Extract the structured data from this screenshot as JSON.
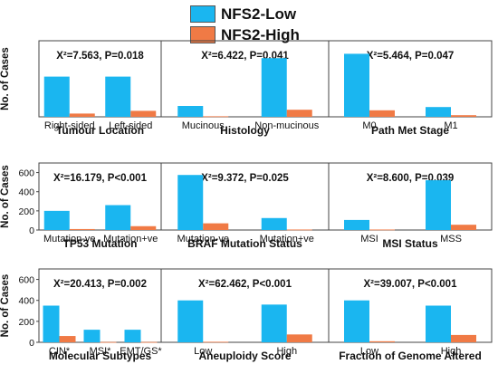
{
  "legend": {
    "items": [
      {
        "label": "NFS2-Low",
        "color": "#1ab6f0"
      },
      {
        "label": "NFS2-High",
        "color": "#f07a45"
      }
    ]
  },
  "colors": {
    "low": "#1ab6f0",
    "high": "#f07a45",
    "frame": "#444444"
  },
  "chart_data": [
    {
      "type": "bar",
      "title": "Tumour Location",
      "stat": "X²=7.563, P=0.018",
      "categories": [
        "Right-sided",
        "Left-sided"
      ],
      "ylabel": "No. of Cases",
      "ylim": [
        0,
        700
      ],
      "yticks": [],
      "series": [
        {
          "name": "NFS2-Low",
          "values": [
            370,
            370
          ]
        },
        {
          "name": "NFS2-High",
          "values": [
            30,
            55
          ]
        }
      ]
    },
    {
      "type": "bar",
      "title": "Histology",
      "stat": "X²=6.422, P=0.041",
      "categories": [
        "Mucinous",
        "Non-mucinous"
      ],
      "ylabel": "",
      "ylim": [
        0,
        700
      ],
      "yticks": [],
      "series": [
        {
          "name": "NFS2-Low",
          "values": [
            100,
            540
          ]
        },
        {
          "name": "NFS2-High",
          "values": [
            5,
            65
          ]
        }
      ]
    },
    {
      "type": "bar",
      "title": "Path Met Stage",
      "stat": "X²=5.464, P=0.047",
      "categories": [
        "M0",
        "M1"
      ],
      "ylabel": "",
      "ylim": [
        0,
        700
      ],
      "yticks": [],
      "series": [
        {
          "name": "NFS2-Low",
          "values": [
            580,
            90
          ]
        },
        {
          "name": "NFS2-High",
          "values": [
            60,
            15
          ]
        }
      ]
    },
    {
      "type": "bar",
      "title": "TP53 Mutation",
      "stat": "X²=16.179, P<0.001",
      "categories": [
        "Mutation-ve",
        "Mutation+ve"
      ],
      "ylabel": "No. of Cases",
      "ylim": [
        0,
        700
      ],
      "yticks": [
        "0",
        "200",
        "400",
        "600"
      ],
      "series": [
        {
          "name": "NFS2-Low",
          "values": [
            200,
            260
          ]
        },
        {
          "name": "NFS2-High",
          "values": [
            10,
            40
          ]
        }
      ]
    },
    {
      "type": "bar",
      "title": "BRAF Mutation Status",
      "stat": "X²=9.372, P=0.025",
      "categories": [
        "Mutation-ve",
        "Mutation+ve"
      ],
      "ylabel": "",
      "ylim": [
        0,
        700
      ],
      "yticks": [],
      "series": [
        {
          "name": "NFS2-Low",
          "values": [
            575,
            125
          ]
        },
        {
          "name": "NFS2-High",
          "values": [
            70,
            5
          ]
        }
      ]
    },
    {
      "type": "bar",
      "title": "MSI Status",
      "stat": "X²=8.600, P=0.039",
      "categories": [
        "MSI",
        "MSS"
      ],
      "ylabel": "",
      "ylim": [
        0,
        700
      ],
      "yticks": [],
      "series": [
        {
          "name": "NFS2-Low",
          "values": [
            105,
            520
          ]
        },
        {
          "name": "NFS2-High",
          "values": [
            5,
            55
          ]
        }
      ]
    },
    {
      "type": "bar",
      "title": "Molecular Subtypes",
      "stat": "X²=20.413, P=0.002",
      "categories": [
        "CIN*",
        "MSI*",
        "EMT/GS*"
      ],
      "ylabel": "No. of Cases",
      "ylim": [
        0,
        700
      ],
      "yticks": [
        "0",
        "200",
        "400",
        "600"
      ],
      "series": [
        {
          "name": "NFS2-Low",
          "values": [
            350,
            120,
            120
          ]
        },
        {
          "name": "NFS2-High",
          "values": [
            60,
            3,
            3
          ]
        }
      ]
    },
    {
      "type": "bar",
      "title": "Aneuploidy Score",
      "stat": "X²=62.462, P<0.001",
      "categories": [
        "Low",
        "High"
      ],
      "ylabel": "",
      "ylim": [
        0,
        700
      ],
      "yticks": [],
      "series": [
        {
          "name": "NFS2-Low",
          "values": [
            400,
            360
          ]
        },
        {
          "name": "NFS2-High",
          "values": [
            5,
            75
          ]
        }
      ]
    },
    {
      "type": "bar",
      "title": "Fraction of Genome Altered",
      "stat": "X²=39.007, P<0.001",
      "categories": [
        "Low",
        "High"
      ],
      "ylabel": "",
      "ylim": [
        0,
        700
      ],
      "yticks": [],
      "series": [
        {
          "name": "NFS2-Low",
          "values": [
            400,
            350
          ]
        },
        {
          "name": "NFS2-High",
          "values": [
            10,
            70
          ]
        }
      ]
    }
  ]
}
